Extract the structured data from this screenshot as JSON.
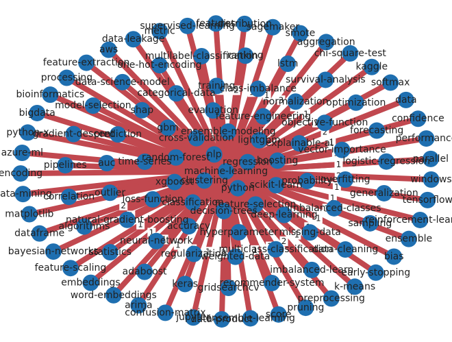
{
  "chart_data": {
    "type": "network",
    "center": "machine-learning",
    "colors": {
      "node": "#1f6fb0",
      "edge": "#c1484f",
      "label": "#222222"
    },
    "rings": [
      {
        "nodes": [
          "features",
          "distribution",
          "sagemaker",
          "smote",
          "aggregation",
          "chi-square-test",
          "kaggle",
          "softmax",
          "data",
          "confidence",
          "performance",
          "parallel",
          "windows",
          "tensorflow",
          "reinforcement-learning",
          "ensemble",
          "bias",
          "early-stopping",
          "k-means",
          "preprocessing",
          "pruning",
          "score",
          "ensemble-learning",
          "data-product",
          "jupyter",
          "confusion-matrix",
          "arima",
          "word-embeddings",
          "embeddings",
          "feature-scaling",
          "bayesian-networks",
          "dataframe",
          "matplotlib",
          "data-mining",
          "encoding",
          "azure-ml",
          "python-x",
          "bigdata",
          "bioinformatics",
          "processing",
          "feature-extraction",
          "aws",
          "data-leakage",
          "metric",
          "supervised-learning"
        ]
      },
      {
        "nodes": [
          "ranking",
          "lstm",
          "survival-analysis",
          "optimization",
          "forecasting",
          "logistic-regression",
          "generalization",
          "sampling",
          "data-cleaning",
          "imbalanced-learn",
          "recommender-system",
          "gridsearchcv",
          "keras",
          "adaboost",
          "statistics",
          "algorithms",
          "correlation",
          "pipelines",
          "gradient-descent",
          "model-selection",
          "data-science-model",
          "one-hot-encoding",
          "multilabel-classification"
        ]
      },
      {
        "nodes": [
          "class-imbalance",
          "normalization",
          "objective-function",
          "vector-importance",
          "overfitting",
          "imbalanced-classes",
          "missing-data",
          "multiclass-classification",
          "weighted-data",
          "regularization",
          "neural-network",
          "natural-gradient-boosting",
          "outlier",
          "auc",
          "prediction",
          "shap",
          "categorical-data",
          "training"
        ]
      },
      {
        "nodes": [
          "feature-engineering",
          "explainable-ai",
          "probability",
          "deep-learning",
          "hyperparameter",
          "accuracy",
          "loss-function",
          "time-series",
          "gbm",
          "evaluation"
        ]
      },
      {
        "nodes": [
          "lightgbm",
          "boosting",
          "scikit-learn",
          "feature-selection",
          "decision-trees",
          "classification",
          "xgboost",
          "random-forest",
          "cross-validation",
          "ensemble-modeling"
        ]
      },
      {
        "nodes": [
          "regression",
          "python",
          "clustering",
          "nlp"
        ]
      }
    ],
    "edge_labels": [
      "1",
      "2",
      "1",
      "1",
      "3",
      "4",
      "1",
      "1",
      "2",
      "1",
      "1",
      "1",
      "2",
      "1",
      "1",
      "1",
      "1",
      "1",
      "1",
      "2",
      "1",
      "1",
      "1",
      "2",
      "1",
      "1",
      "1",
      "1",
      "1",
      "1",
      "1",
      "2"
    ]
  }
}
